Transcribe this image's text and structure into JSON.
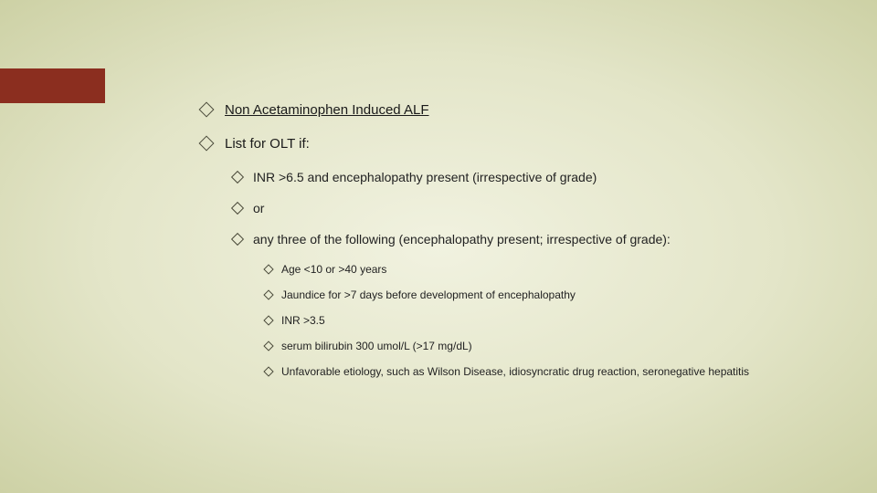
{
  "accent_color": "#8b2e1f",
  "background_gradient": {
    "inner": "#f1f2e0",
    "mid": "#e3e5c8",
    "outer": "#cdd1a5"
  },
  "slide": {
    "level1": [
      {
        "text": "Non Acetaminophen Induced ALF",
        "underline": true
      },
      {
        "text": "List for OLT if:",
        "underline": false
      }
    ],
    "level2": [
      "INR >6.5 and encephalopathy present (irrespective of grade)",
      "or",
      "any three of the following (encephalopathy present; irrespective of grade):"
    ],
    "level3": [
      "Age <10 or >40 years",
      "Jaundice for >7 days before development of encephalopathy",
      "INR >3.5",
      "serum bilirubin 300 umol/L (>17 mg/dL)",
      "Unfavorable etiology, such as Wilson Disease, idiosyncratic drug reaction, seronegative hepatitis"
    ]
  }
}
